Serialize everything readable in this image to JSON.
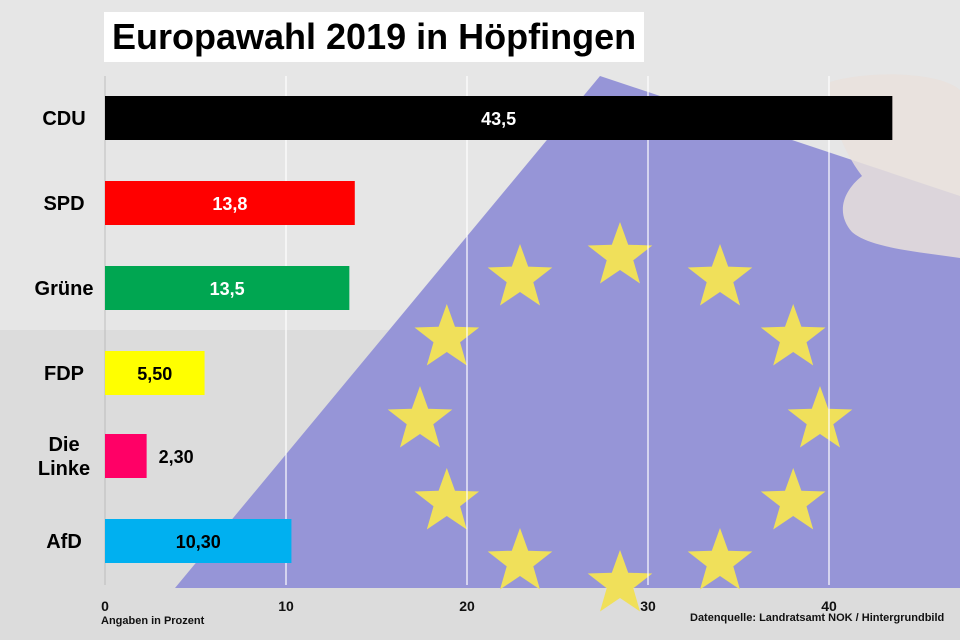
{
  "title": "Europawahl 2019 in Höpfingen",
  "footnote_left": "Angaben in Prozent",
  "footnote_right": "Datenquelle: Landratsamt NOK / Hintergrundbild",
  "chart_data": {
    "type": "bar",
    "orientation": "horizontal",
    "title": "Europawahl 2019 in Höpfingen",
    "categories": [
      "CDU",
      "SPD",
      "Grüne",
      "FDP",
      "Die Linke",
      "AfD"
    ],
    "category_lines": [
      [
        "CDU"
      ],
      [
        "SPD"
      ],
      [
        "Grüne"
      ],
      [
        "FDP"
      ],
      [
        "Die",
        "Linke"
      ],
      [
        "AfD"
      ]
    ],
    "values": [
      43.5,
      13.8,
      13.5,
      5.5,
      2.3,
      10.3
    ],
    "value_labels": [
      "43,5",
      "13,8",
      "13,5",
      "5,50",
      "2,30",
      "10,30"
    ],
    "colors": [
      "#000000",
      "#ff0000",
      "#00a651",
      "#ffff00",
      "#ff0066",
      "#00b0f0"
    ],
    "label_colors": [
      "#ffffff",
      "#ffffff",
      "#ffffff",
      "#000000",
      "#000000",
      "#000000"
    ],
    "xlim": [
      0,
      44
    ],
    "xticks": [
      0,
      10,
      20,
      30,
      40
    ],
    "xlabel": "",
    "ylabel": "",
    "grid": true
  },
  "colors": {
    "flag_blue": "#8f8ed6",
    "star_yellow": "#f0e05a",
    "background": "#e4e4e4"
  }
}
